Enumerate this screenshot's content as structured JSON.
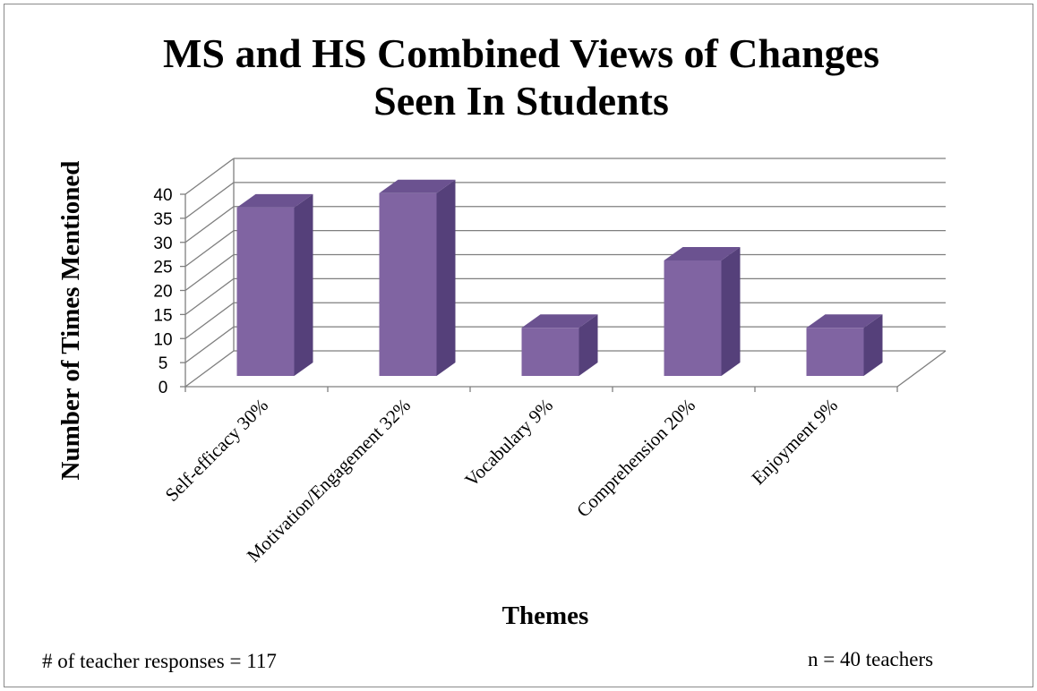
{
  "chart_data": {
    "type": "bar",
    "title": [
      "MS and HS Combined Views of Changes",
      "Seen In Students"
    ],
    "xlabel": "Themes",
    "ylabel": "Number of Times Mentioned",
    "categories": [
      "Self-efficacy 30%",
      "Motivation/Engagement 32%",
      "Vocabulary 9%",
      "Comprehension 20%",
      "Enjoyment 9%"
    ],
    "values": [
      35,
      38,
      10,
      24,
      10
    ],
    "ylim": [
      0,
      40
    ],
    "yticks": [
      "0",
      "5",
      "10",
      "15",
      "20",
      "25",
      "30",
      "35",
      "40"
    ],
    "grid": true,
    "three_d": true,
    "colors": {
      "bar_front": "#8064a2",
      "bar_side": "#55407a",
      "bar_top": "#6b5290",
      "grid": "#7f7f7f"
    }
  },
  "notes": {
    "responses": "# of teacher responses = 117",
    "teachers": "n = 40 teachers"
  }
}
